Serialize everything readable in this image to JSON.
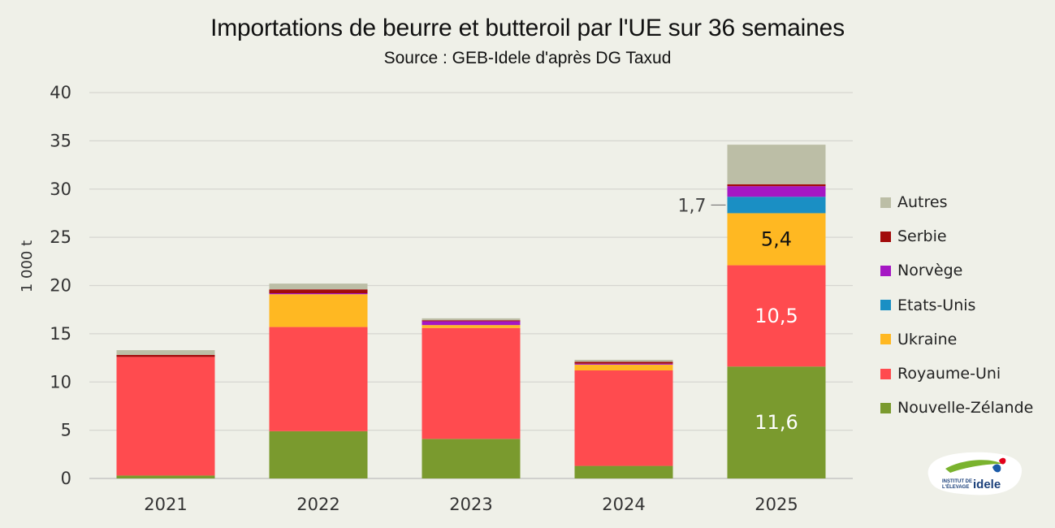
{
  "header": {
    "title": "Importations de beurre et butteroil par l'UE sur 36 semaines",
    "subtitle": "Source : GEB-Idele d'après DG Taxud"
  },
  "logo": {
    "line1": "INSTITUT DE",
    "line2": "L'ÉLEVAGE",
    "brand": "idele"
  },
  "chart_data": {
    "type": "bar",
    "stacked": true,
    "title": "Importations de beurre et butteroil par l'UE sur 36 semaines",
    "subtitle": "Source : GEB-Idele d'après DG Taxud",
    "xlabel": "",
    "ylabel": "1 000 t",
    "ylim": [
      0,
      40
    ],
    "yticks": [
      0,
      5,
      10,
      15,
      20,
      25,
      30,
      35,
      40
    ],
    "grid": true,
    "legend_position": "right",
    "categories": [
      "2021",
      "2022",
      "2023",
      "2024",
      "2025"
    ],
    "series": [
      {
        "name": "Nouvelle-Zélande",
        "color": "#7a9a2e",
        "values": [
          0.3,
          4.9,
          4.1,
          1.3,
          11.6
        ]
      },
      {
        "name": "Royaume-Uni",
        "color": "#ff4b4f",
        "values": [
          12.3,
          10.8,
          11.5,
          9.9,
          10.5
        ]
      },
      {
        "name": "Ukraine",
        "color": "#ffb822",
        "values": [
          0.0,
          3.4,
          0.3,
          0.6,
          5.4
        ]
      },
      {
        "name": "Etats-Unis",
        "color": "#1a8fc4",
        "values": [
          0.0,
          0.0,
          0.0,
          0.0,
          1.7
        ]
      },
      {
        "name": "Norvège",
        "color": "#a517c4",
        "values": [
          0.0,
          0.1,
          0.4,
          0.1,
          1.1
        ]
      },
      {
        "name": "Serbie",
        "color": "#a20b0b",
        "values": [
          0.2,
          0.4,
          0.1,
          0.2,
          0.2
        ]
      },
      {
        "name": "Autres",
        "color": "#bcbea6",
        "values": [
          0.5,
          0.6,
          0.2,
          0.2,
          4.1
        ]
      }
    ],
    "data_labels": [
      {
        "series": "Nouvelle-Zélande",
        "category": "2025",
        "text": "11,6",
        "color": "#ffffff"
      },
      {
        "series": "Royaume-Uni",
        "category": "2025",
        "text": "10,5",
        "color": "#ffffff"
      },
      {
        "series": "Ukraine",
        "category": "2025",
        "text": "5,4",
        "color": "#111111"
      },
      {
        "series": "Etats-Unis",
        "category": "2025",
        "text": "1,7",
        "color": "#444444",
        "outside": true
      }
    ]
  }
}
